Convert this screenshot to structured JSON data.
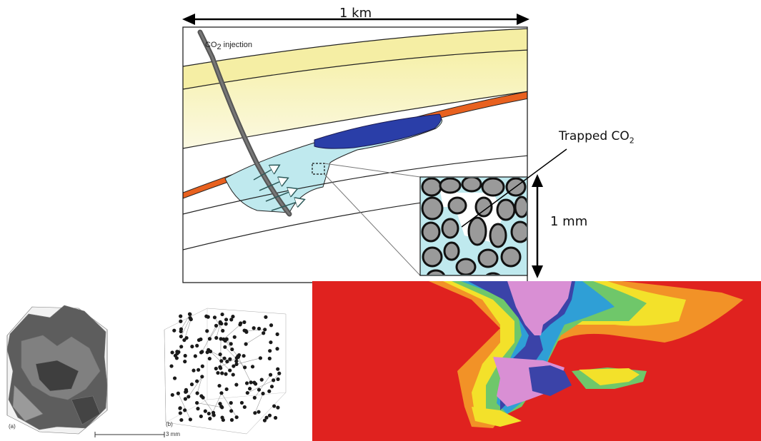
{
  "scale": {
    "km_label": "1 km",
    "mm_label": "1 mm"
  },
  "labels": {
    "co2_injection_main": "CO",
    "co2_injection_sub": "2",
    "co2_injection_rest": " injection",
    "trapped_main": "Trapped CO",
    "trapped_sub": "2"
  },
  "panels": {
    "a_label": "(a)",
    "b_label": "(b)",
    "scalebar_label": "3 mm"
  },
  "colors": {
    "caprock_yellow": "#f7f2b8",
    "orange_seal": "#e8611f",
    "plume_cyan": "#bfe9ee",
    "dense_co2_blue": "#2a3ea8",
    "simulation_red": "#e0221f",
    "simulation_pink": "#d98fd4"
  }
}
